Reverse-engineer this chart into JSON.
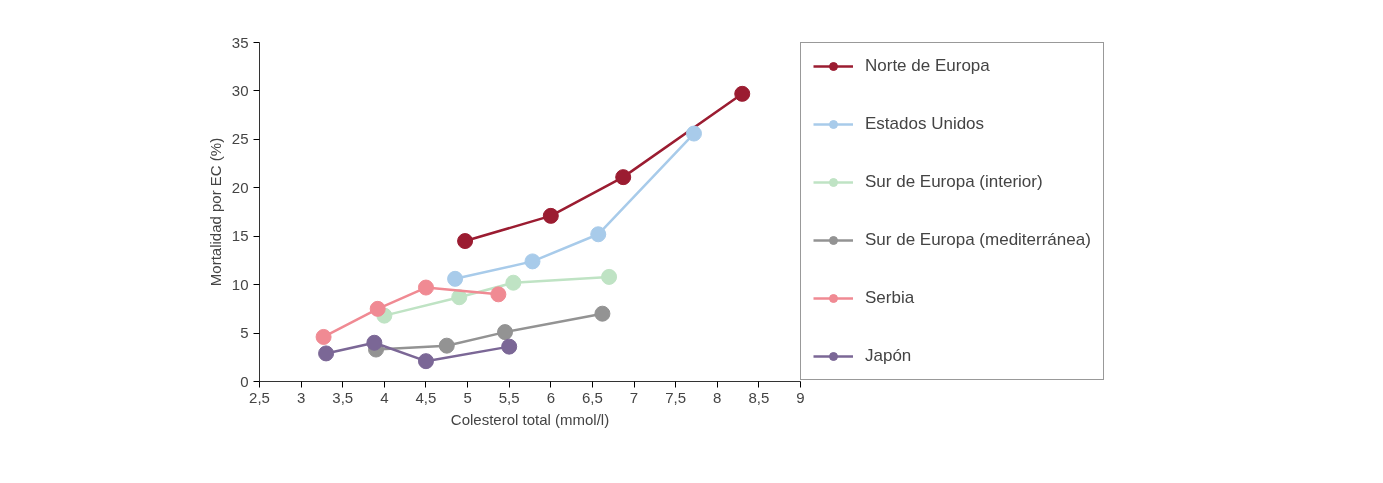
{
  "chart_data": {
    "type": "line",
    "xlabel": "Colesterol total (mmol/l)",
    "ylabel": "Mortalidad por EC (%)",
    "xlim": [
      2.5,
      9
    ],
    "xticks": [
      {
        "value": 2.5,
        "label": "2,5"
      },
      3,
      {
        "value": 3.5,
        "label": "3,5"
      },
      4,
      {
        "value": 4.5,
        "label": "4,5"
      },
      5,
      {
        "value": 5.5,
        "label": "5,5"
      },
      6,
      {
        "value": 6.5,
        "label": "6,5"
      },
      7,
      {
        "value": 7.5,
        "label": "7,5"
      },
      8,
      {
        "value": 8.5,
        "label": "8,5"
      },
      9
    ],
    "ylim": [
      0,
      35
    ],
    "yticks": [
      0,
      5,
      10,
      15,
      20,
      25,
      30,
      35
    ],
    "grid": false,
    "legend": "right",
    "marker": "circle",
    "line_style": "solid",
    "series": [
      {
        "name": "Norte de Europa",
        "color": "#9b1c31",
        "x": [
          4.97,
          6.0,
          6.87,
          8.3
        ],
        "values": [
          14.5,
          17.1,
          21.1,
          29.7
        ]
      },
      {
        "name": "Estados Unidos",
        "color": "#a8cbea",
        "x": [
          4.85,
          5.78,
          6.57,
          7.72
        ],
        "values": [
          10.6,
          12.4,
          15.2,
          25.6
        ]
      },
      {
        "name": "Sur de Europa (interior)",
        "color": "#bfe3c4",
        "x": [
          4.0,
          4.9,
          5.55,
          6.7
        ],
        "values": [
          6.8,
          8.7,
          10.2,
          10.8
        ]
      },
      {
        "name": "Sur de Europa (mediterránea)",
        "color": "#939393",
        "x": [
          3.9,
          4.75,
          5.45,
          6.62
        ],
        "values": [
          3.3,
          3.7,
          5.1,
          7.0
        ]
      },
      {
        "name": "Serbia",
        "color": "#f08a93",
        "x": [
          3.27,
          3.92,
          4.5,
          5.37
        ],
        "values": [
          4.6,
          7.5,
          9.7,
          9.0
        ]
      },
      {
        "name": "Japón",
        "color": "#7b6796",
        "x": [
          3.3,
          3.88,
          4.5,
          5.5
        ],
        "values": [
          2.9,
          4.0,
          2.1,
          3.6
        ]
      }
    ]
  }
}
